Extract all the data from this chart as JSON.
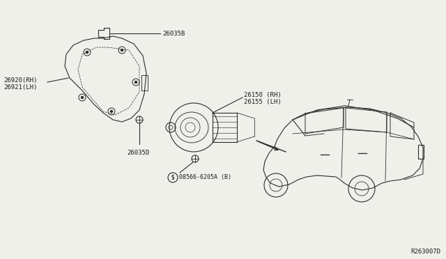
{
  "bg_color": "#f0f0eb",
  "line_color": "#2a2a2a",
  "text_color": "#1a1a1a",
  "fig_width": 6.4,
  "fig_height": 3.72,
  "dpi": 100,
  "diagram_id": "R263007D",
  "labels": {
    "part_A": "26035B",
    "part_B1": "26920(RH)",
    "part_B2": "26921(LH)",
    "part_C": "26035D",
    "part_D1": "26150 (RH)",
    "part_D2": "26155 (LH)",
    "part_E": "08566-6205A (B)"
  }
}
